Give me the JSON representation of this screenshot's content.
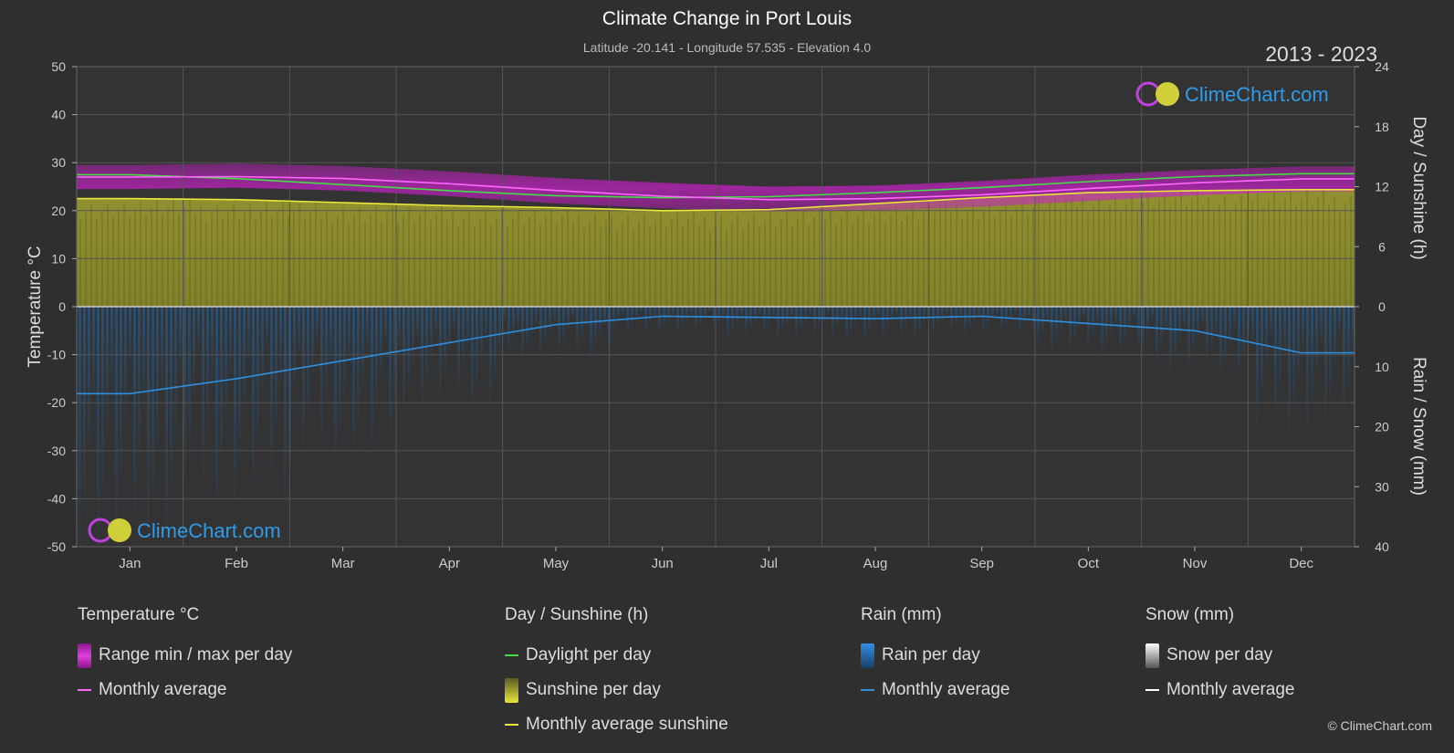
{
  "header": {
    "title": "Climate Change in Port Louis",
    "subtitle": "Latitude -20.141 - Longitude 57.535 - Elevation 4.0",
    "period": "2013 - 2023"
  },
  "brand": {
    "name": "ClimeChart.com",
    "copyright": "© ClimeChart.com"
  },
  "colors": {
    "background": "#2f2f2f",
    "temp_range": "#d020d0",
    "temp_avg": "#ff66ff",
    "daylight": "#44dd44",
    "sunshine_fill": "#a4a42a",
    "sunshine_avg": "#e8e83a",
    "rain": "#1e6fb8",
    "rain_avg": "#2e8fe0",
    "snow_avg": "#ffffff"
  },
  "legend": {
    "temperature": {
      "heading": "Temperature °C",
      "range_label": "Range min / max per day",
      "avg_label": "Monthly average"
    },
    "day": {
      "heading": "Day / Sunshine (h)",
      "daylight_label": "Daylight per day",
      "sunshine_label": "Sunshine per day",
      "avg_sunshine_label": "Monthly average sunshine"
    },
    "rain": {
      "heading": "Rain (mm)",
      "rain_label": "Rain per day",
      "avg_label": "Monthly average"
    },
    "snow": {
      "heading": "Snow (mm)",
      "snow_label": "Snow per day",
      "avg_label": "Monthly average"
    }
  },
  "chart_data": {
    "type": "area",
    "months": [
      "Jan",
      "Feb",
      "Mar",
      "Apr",
      "May",
      "Jun",
      "Jul",
      "Aug",
      "Sep",
      "Oct",
      "Nov",
      "Dec"
    ],
    "y_left": {
      "label": "Temperature °C",
      "range": [
        -50,
        50
      ],
      "ticks": [
        50,
        40,
        30,
        20,
        10,
        0,
        -10,
        -20,
        -30,
        -40,
        -50
      ]
    },
    "y_right_top": {
      "label": "Day / Sunshine (h)",
      "range": [
        0,
        24
      ],
      "ticks": [
        24,
        18,
        12,
        6,
        0
      ]
    },
    "y_right_bottom": {
      "label": "Rain / Snow (mm)",
      "range": [
        0,
        40
      ],
      "ticks": [
        0,
        10,
        20,
        30,
        40
      ]
    },
    "series": [
      {
        "name": "Range min / max per day",
        "kind": "band",
        "min": [
          24.5,
          24.8,
          24.2,
          23.0,
          21.5,
          20.5,
          19.8,
          20.0,
          20.8,
          22.0,
          23.2,
          24.0
        ],
        "max": [
          29.5,
          29.8,
          29.3,
          28.2,
          26.8,
          25.8,
          25.0,
          25.2,
          26.2,
          27.5,
          28.5,
          29.2
        ]
      },
      {
        "name": "Monthly average",
        "kind": "temp_avg",
        "values": [
          27.0,
          27.1,
          26.7,
          25.6,
          24.2,
          23.0,
          22.3,
          22.5,
          23.3,
          24.6,
          25.8,
          26.6
        ]
      },
      {
        "name": "Daylight per day",
        "kind": "daylight",
        "values": [
          13.2,
          12.8,
          12.2,
          11.6,
          11.1,
          10.9,
          11.0,
          11.4,
          11.9,
          12.5,
          13.0,
          13.3
        ]
      },
      {
        "name": "Monthly average sunshine",
        "kind": "sunshine",
        "values": [
          10.8,
          10.7,
          10.4,
          10.1,
          9.9,
          9.6,
          9.7,
          10.3,
          10.9,
          11.4,
          11.6,
          11.7
        ]
      },
      {
        "name": "Monthly average",
        "kind": "rain_avg",
        "values": [
          14.5,
          12.0,
          9.0,
          6.0,
          3.0,
          1.6,
          1.8,
          2.0,
          1.6,
          2.8,
          4.0,
          7.7
        ]
      }
    ],
    "grid": true
  }
}
